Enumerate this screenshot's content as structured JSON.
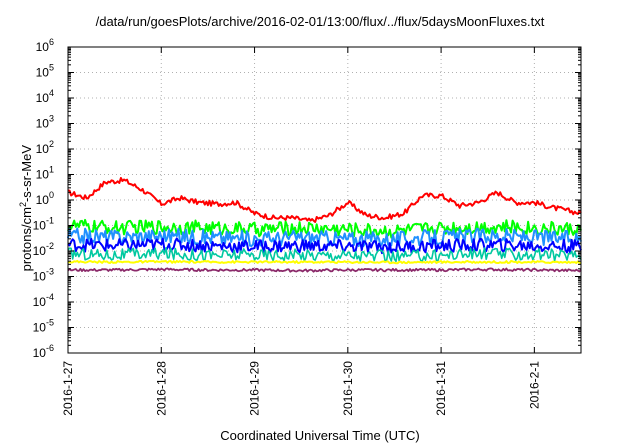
{
  "chart_data": {
    "type": "line",
    "title": "/data/run/goesPlots/archive/2016-02-01/13:00/flux/../flux/5daysMoonFluxes.txt",
    "xlabel": "Coordinated Universal Time (UTC)",
    "ylabel_prefix": "protons/cm",
    "ylabel_sup": "2",
    "ylabel_suffix": "-s-sr-MeV",
    "yscale": "log",
    "ylim": [
      1e-06,
      1000000.0
    ],
    "ytick_exponents": [
      -6,
      -5,
      -4,
      -3,
      -2,
      -1,
      0,
      1,
      2,
      3,
      4,
      5,
      6
    ],
    "xlim": [
      "2016-01-27",
      "2016-02-01 13:00"
    ],
    "xticks": [
      "2016-1-27",
      "2016-1-28",
      "2016-1-29",
      "2016-1-30",
      "2016-1-31",
      "2016-2-1"
    ],
    "grid": true,
    "series": [
      {
        "color": "#ff0000",
        "x": [
          0,
          0.2,
          0.4,
          0.6,
          0.8,
          1.0,
          1.2,
          1.4,
          1.6,
          1.8,
          2.0,
          2.2,
          2.4,
          2.6,
          2.8,
          3.0,
          3.2,
          3.4,
          3.6,
          3.8,
          4.0,
          4.2,
          4.4,
          4.6,
          4.8,
          5.0,
          5.2,
          5.5
        ],
        "values": [
          2.0,
          1.2,
          5.0,
          6.0,
          2.5,
          0.7,
          1.2,
          0.8,
          0.7,
          0.8,
          0.3,
          0.2,
          0.2,
          0.15,
          0.25,
          0.8,
          0.25,
          0.2,
          0.3,
          1.5,
          1.5,
          0.6,
          0.8,
          2.0,
          0.8,
          0.8,
          0.5,
          0.3
        ]
      },
      {
        "color": "#00ff00",
        "x": [
          0,
          0.5,
          1.0,
          1.5,
          2.0,
          2.5,
          3.0,
          3.5,
          4.0,
          4.5,
          5.0,
          5.5
        ],
        "values": [
          0.1,
          0.08,
          0.09,
          0.08,
          0.07,
          0.08,
          0.07,
          0.06,
          0.08,
          0.09,
          0.08,
          0.07
        ]
      },
      {
        "color": "#2090ff",
        "x": [
          0,
          0.5,
          1.0,
          1.5,
          2.0,
          2.5,
          3.0,
          3.5,
          4.0,
          4.5,
          5.0,
          5.5
        ],
        "values": [
          0.04,
          0.035,
          0.04,
          0.035,
          0.03,
          0.035,
          0.03,
          0.03,
          0.035,
          0.04,
          0.035,
          0.03
        ]
      },
      {
        "color": "#0000ff",
        "x": [
          0,
          0.5,
          1.0,
          1.5,
          2.0,
          2.5,
          3.0,
          3.5,
          4.0,
          4.5,
          5.0,
          5.5
        ],
        "values": [
          0.018,
          0.016,
          0.018,
          0.016,
          0.015,
          0.016,
          0.015,
          0.014,
          0.016,
          0.017,
          0.016,
          0.015
        ]
      },
      {
        "color": "#00c8a0",
        "x": [
          0,
          0.5,
          1.0,
          1.5,
          2.0,
          2.5,
          3.0,
          3.5,
          4.0,
          4.5,
          5.0,
          5.5
        ],
        "values": [
          0.008,
          0.007,
          0.008,
          0.007,
          0.007,
          0.007,
          0.007,
          0.006,
          0.007,
          0.008,
          0.007,
          0.007
        ]
      },
      {
        "color": "#ffff00",
        "x": [
          0,
          0.5,
          1.0,
          1.5,
          2.0,
          2.5,
          3.0,
          3.5,
          4.0,
          4.5,
          5.0,
          5.5
        ],
        "values": [
          0.0038,
          0.0037,
          0.0038,
          0.0037,
          0.0037,
          0.0037,
          0.0037,
          0.0036,
          0.0037,
          0.0037,
          0.0037,
          0.0036
        ]
      },
      {
        "color": "#8b2a6a",
        "x": [
          0,
          0.5,
          1.0,
          1.5,
          2.0,
          2.5,
          3.0,
          3.5,
          4.0,
          4.5,
          5.0,
          5.5
        ],
        "values": [
          0.0018,
          0.0018,
          0.0019,
          0.0018,
          0.0018,
          0.0017,
          0.0018,
          0.0018,
          0.0018,
          0.0019,
          0.0018,
          0.0017
        ]
      }
    ]
  }
}
